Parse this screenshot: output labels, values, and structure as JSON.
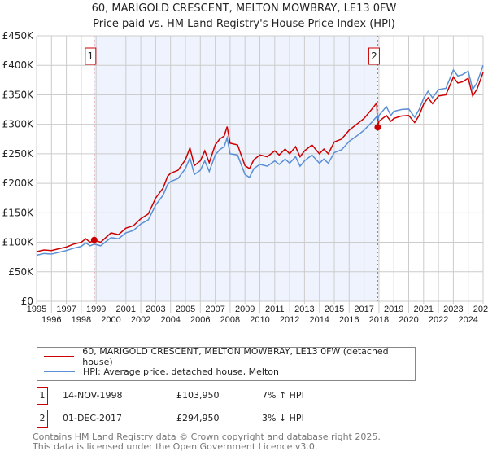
{
  "chart_data": {
    "type": "line",
    "title": "60, MARIGOLD CRESCENT, MELTON MOWBRAY, LE13 0FW",
    "subtitle": "Price paid vs. HM Land Registry's House Price Index (HPI)",
    "xlim": [
      1995,
      2025
    ],
    "ylim": [
      0,
      450000
    ],
    "y_ticks": [
      0,
      50000,
      100000,
      150000,
      200000,
      250000,
      300000,
      350000,
      400000,
      450000
    ],
    "y_tick_labels": [
      "£0",
      "£50K",
      "£100K",
      "£150K",
      "£200K",
      "£250K",
      "£300K",
      "£350K",
      "£400K",
      "£450K"
    ],
    "x_ticks": [
      "1995",
      "1996",
      "1997",
      "1998",
      "1999",
      "2000",
      "2001",
      "2002",
      "2003",
      "2004",
      "2005",
      "2006",
      "2007",
      "2008",
      "2009",
      "2010",
      "2011",
      "2012",
      "2013",
      "2014",
      "2015",
      "2016",
      "2017",
      "2018",
      "2019",
      "2020",
      "2021",
      "2022",
      "2023",
      "2024",
      "2025"
    ],
    "grid": true,
    "shaded_range": [
      1998.87,
      2017.92
    ],
    "series": [
      {
        "name": "60, MARIGOLD CRESCENT, MELTON MOWBRAY, LE13 0FW (detached house)",
        "color": "#cc0000",
        "x": [
          1995,
          1995.5,
          1996,
          1996.5,
          1997,
          1997.5,
          1998,
          1998.3,
          1998.6,
          1998.87,
          1999.3,
          2000,
          2000.5,
          2001,
          2001.5,
          2002,
          2002.5,
          2003,
          2003.5,
          2003.8,
          2004,
          2004.5,
          2005,
          2005.3,
          2005.6,
          2006,
          2006.3,
          2006.6,
          2007,
          2007.3,
          2007.6,
          2007.8,
          2008,
          2008.5,
          2009,
          2009.3,
          2009.6,
          2010,
          2010.5,
          2011,
          2011.3,
          2011.7,
          2012,
          2012.4,
          2012.7,
          2013,
          2013.5,
          2014,
          2014.3,
          2014.6,
          2015,
          2015.5,
          2016,
          2016.5,
          2017,
          2017.5,
          2017.85,
          2017.92,
          2018,
          2018.5,
          2018.8,
          2019,
          2019.5,
          2020,
          2020.4,
          2020.7,
          2021,
          2021.3,
          2021.6,
          2022,
          2022.5,
          2023,
          2023.3,
          2023.6,
          2024,
          2024.3,
          2024.6,
          2025
        ],
        "y": [
          84000,
          87000,
          86000,
          89000,
          92000,
          97000,
          100000,
          106000,
          100000,
          103950,
          100000,
          116000,
          113000,
          124000,
          128000,
          140000,
          148000,
          175000,
          192000,
          212000,
          217000,
          222000,
          240000,
          260000,
          230000,
          238000,
          255000,
          235000,
          265000,
          275000,
          280000,
          296000,
          268000,
          265000,
          230000,
          225000,
          240000,
          248000,
          245000,
          255000,
          248000,
          258000,
          250000,
          262000,
          245000,
          255000,
          265000,
          250000,
          258000,
          250000,
          270000,
          275000,
          290000,
          300000,
          310000,
          325000,
          336000,
          294950,
          305000,
          315000,
          305000,
          310000,
          314000,
          315000,
          303000,
          315000,
          334000,
          345000,
          335000,
          348000,
          350000,
          380000,
          370000,
          372000,
          378000,
          348000,
          360000,
          388000
        ]
      },
      {
        "name": "HPI: Average price, detached house, Melton",
        "color": "#5b8fd4",
        "x": [
          1995,
          1995.5,
          1996,
          1996.5,
          1997,
          1997.5,
          1998,
          1998.3,
          1998.6,
          1998.87,
          1999.3,
          2000,
          2000.5,
          2001,
          2001.5,
          2002,
          2002.5,
          2003,
          2003.5,
          2003.8,
          2004,
          2004.5,
          2005,
          2005.3,
          2005.6,
          2006,
          2006.3,
          2006.6,
          2007,
          2007.3,
          2007.6,
          2007.8,
          2008,
          2008.5,
          2009,
          2009.3,
          2009.6,
          2010,
          2010.5,
          2011,
          2011.3,
          2011.7,
          2012,
          2012.4,
          2012.7,
          2013,
          2013.5,
          2014,
          2014.3,
          2014.6,
          2015,
          2015.5,
          2016,
          2016.5,
          2017,
          2017.5,
          2017.85,
          2017.92,
          2018,
          2018.5,
          2018.8,
          2019,
          2019.5,
          2020,
          2020.4,
          2020.7,
          2021,
          2021.3,
          2021.6,
          2022,
          2022.5,
          2023,
          2023.3,
          2023.6,
          2024,
          2024.3,
          2024.6,
          2025
        ],
        "y": [
          78000,
          81000,
          80000,
          83000,
          86000,
          90000,
          93000,
          99000,
          94000,
          97000,
          94000,
          108000,
          106000,
          116000,
          120000,
          131000,
          138000,
          163000,
          180000,
          198000,
          203000,
          208000,
          225000,
          243000,
          215000,
          222000,
          238000,
          220000,
          248000,
          257000,
          262000,
          277000,
          250000,
          248000,
          215000,
          210000,
          225000,
          232000,
          229000,
          238000,
          232000,
          241000,
          234000,
          245000,
          229000,
          238000,
          248000,
          234000,
          241000,
          234000,
          252000,
          257000,
          271000,
          280000,
          290000,
          303000,
          313000,
          304000,
          315000,
          330000,
          315000,
          322000,
          325000,
          326000,
          312000,
          325000,
          344000,
          356000,
          345000,
          359000,
          361000,
          392000,
          382000,
          384000,
          390000,
          359000,
          371000,
          400000
        ]
      }
    ],
    "annotations": [
      {
        "label": "1",
        "x": 1998.87,
        "y": 103950
      },
      {
        "label": "2",
        "x": 2017.92,
        "y": 294950
      }
    ]
  },
  "legend": {
    "items": [
      "60, MARIGOLD CRESCENT, MELTON MOWBRAY, LE13 0FW (detached house)",
      "HPI: Average price, detached house, Melton"
    ]
  },
  "transactions": [
    {
      "num": "1",
      "date": "14-NOV-1998",
      "price": "£103,950",
      "hpi": "7% ↑ HPI"
    },
    {
      "num": "2",
      "date": "01-DEC-2017",
      "price": "£294,950",
      "hpi": "3% ↓ HPI"
    }
  ],
  "footer": [
    "Contains HM Land Registry data © Crown copyright and database right 2025.",
    "This data is licensed under the Open Government Licence v3.0."
  ]
}
